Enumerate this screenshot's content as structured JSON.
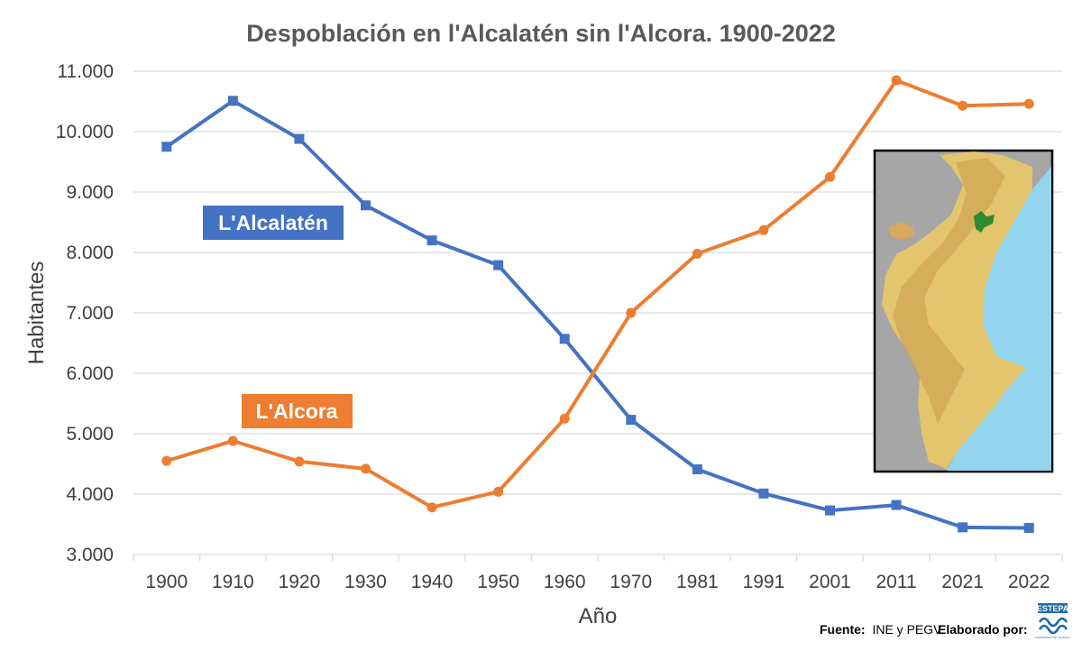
{
  "chart_data": {
    "type": "line",
    "title": "Despoblación en l'Alcalatén sin l'Alcora. 1900-2022",
    "xlabel": "Año",
    "ylabel": "Habitantes",
    "ylim": [
      3000,
      11000
    ],
    "yticks": [
      3000,
      4000,
      5000,
      6000,
      7000,
      8000,
      9000,
      10000,
      11000
    ],
    "ytick_labels": [
      "3.000",
      "4.000",
      "5.000",
      "6.000",
      "7.000",
      "8.000",
      "9.000",
      "10.000",
      "11.000"
    ],
    "grid": true,
    "categories": [
      "1900",
      "1910",
      "1920",
      "1930",
      "1940",
      "1950",
      "1960",
      "1970",
      "1981",
      "1991",
      "2001",
      "2011",
      "2021",
      "2022"
    ],
    "series": [
      {
        "name": "L'Alcalatén",
        "color": "#4472c4",
        "marker": "square",
        "values": [
          9750,
          10510,
          9880,
          8780,
          8200,
          7790,
          6570,
          5230,
          4410,
          4010,
          3730,
          3820,
          3450,
          3440
        ]
      },
      {
        "name": "L'Alcora",
        "color": "#ed7d31",
        "marker": "circle",
        "values": [
          4550,
          4880,
          4540,
          4420,
          3780,
          4040,
          5250,
          7000,
          7980,
          8370,
          9250,
          10850,
          10430,
          10460
        ]
      }
    ],
    "annotations": {
      "source_label": "Fuente:",
      "source_value": "INE y PEGV",
      "credit": "Elaborado por:",
      "logo_text": "ESTEPA",
      "logo_sub": "UNIVERSITAT DE VALÈNCIA"
    }
  }
}
